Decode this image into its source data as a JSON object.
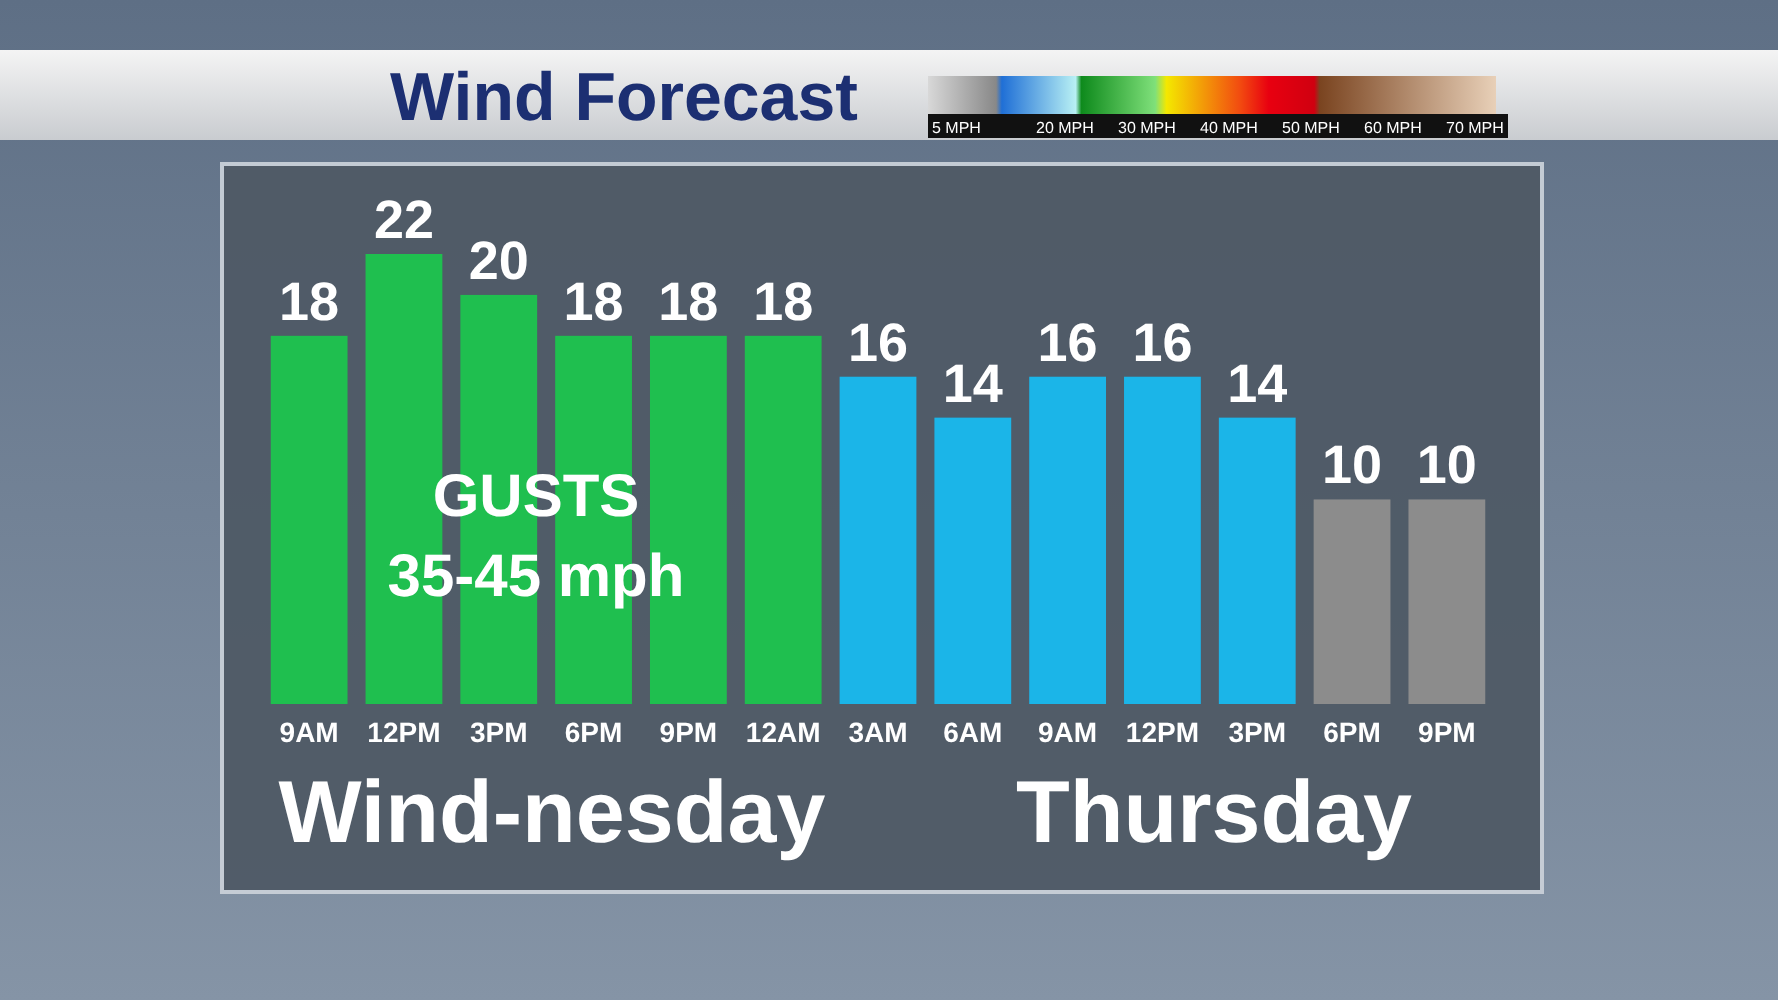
{
  "chart_data": {
    "type": "bar",
    "title": "Wind Forecast",
    "categories": [
      "9AM",
      "12PM",
      "3PM",
      "6PM",
      "9PM",
      "12AM",
      "3AM",
      "6AM",
      "9AM",
      "12PM",
      "3PM",
      "6PM",
      "9PM"
    ],
    "values": [
      18,
      22,
      20,
      18,
      18,
      18,
      16,
      14,
      16,
      16,
      14,
      10,
      10
    ],
    "colors": [
      "#1fbf4f",
      "#1fbf4f",
      "#1fbf4f",
      "#1fbf4f",
      "#1fbf4f",
      "#1fbf4f",
      "#1bb5e8",
      "#1bb5e8",
      "#1bb5e8",
      "#1bb5e8",
      "#1bb5e8",
      "#8c8c8c",
      "#8c8c8c"
    ],
    "data_labels": true,
    "annotations": [
      "5 MPH",
      "20 MPH",
      "30 MPH",
      "40 MPH",
      "50 MPH",
      "60 MPH",
      "70 MPH",
      "GUSTS",
      "35-45 mph",
      "Wind-nesday",
      "Thursday"
    ]
  }
}
